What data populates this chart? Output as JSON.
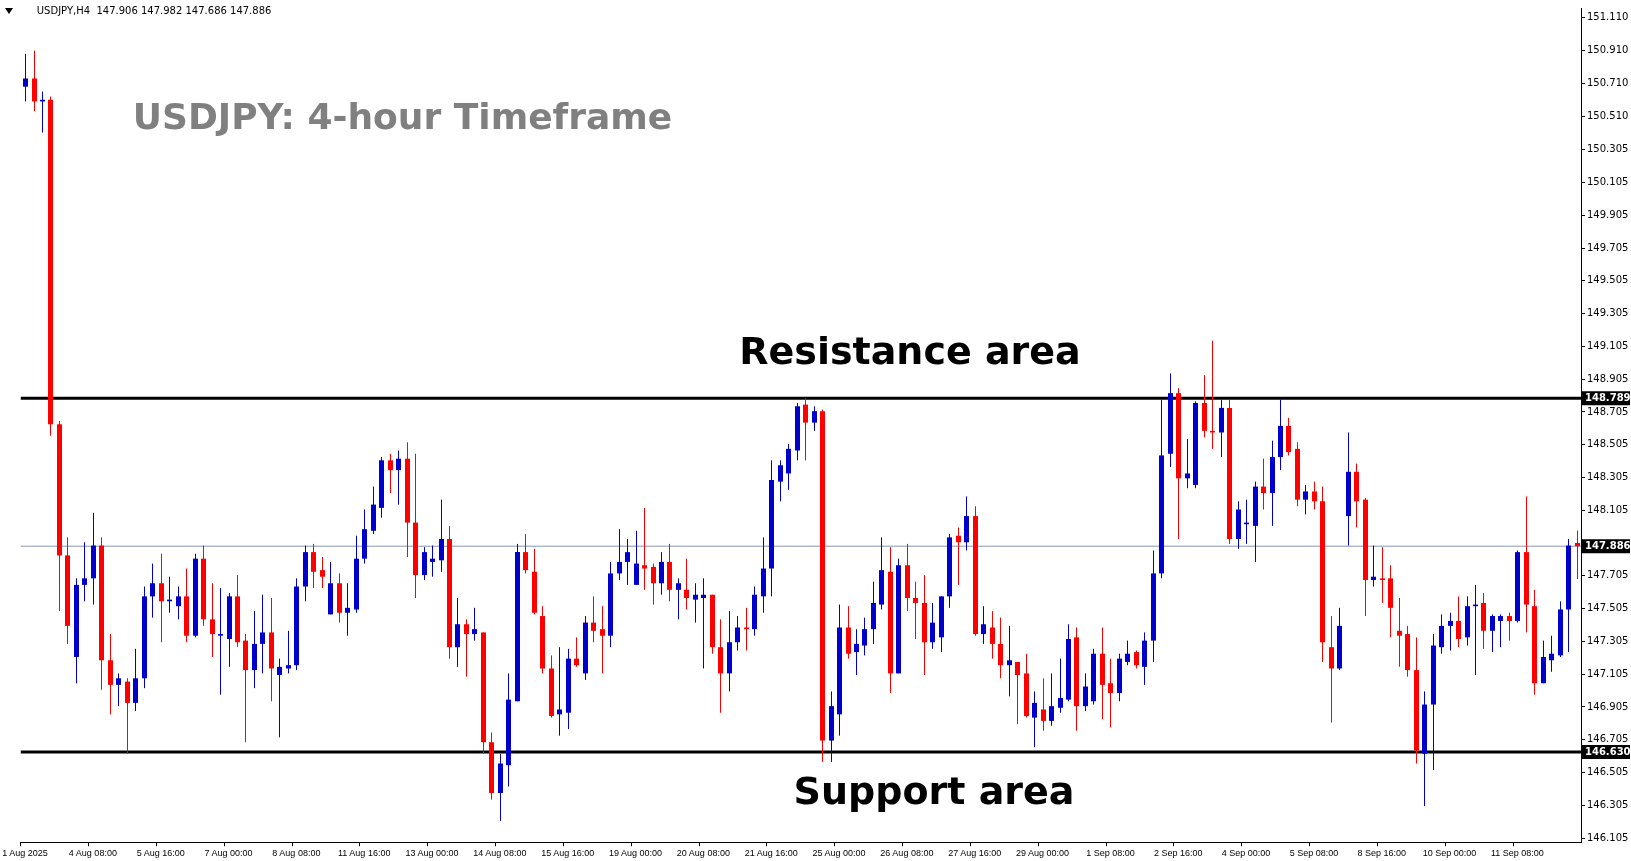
{
  "chart_data": {
    "type": "candlestick",
    "title": "USDJPY: 4-hour Timeframe",
    "subtitle": "USDJPY,H4  147.906 147.982 147.686 147.886",
    "categories": [
      "1 Aug 2025",
      null,
      null,
      null,
      null,
      null,
      null,
      null,
      "4 Aug 08:00",
      null,
      null,
      null,
      null,
      null,
      null,
      null,
      "5 Aug 16:00",
      null,
      null,
      null,
      null,
      null,
      null,
      null,
      "7 Aug 00:00",
      null,
      null,
      null,
      null,
      null,
      null,
      null,
      "8 Aug 08:00",
      null,
      null,
      null,
      null,
      null,
      null,
      null,
      "11 Aug 16:00",
      null,
      null,
      null,
      null,
      null,
      null,
      null,
      "13 Aug 00:00",
      null,
      null,
      null,
      null,
      null,
      null,
      null,
      "14 Aug 08:00",
      null,
      null,
      null,
      null,
      null,
      null,
      null,
      "15 Aug 16:00",
      null,
      null,
      null,
      null,
      null,
      null,
      null,
      "19 Aug 00:00",
      null,
      null,
      null,
      null,
      null,
      null,
      null,
      "20 Aug 08:00",
      null,
      null,
      null,
      null,
      null,
      null,
      null,
      "21 Aug 16:00",
      null,
      null,
      null,
      null,
      null,
      null,
      null,
      "25 Aug 00:00",
      null,
      null,
      null,
      null,
      null,
      null,
      null,
      "26 Aug 08:00",
      null,
      null,
      null,
      null,
      null,
      null,
      null,
      "27 Aug 16:00",
      null,
      null,
      null,
      null,
      null,
      null,
      null,
      "29 Aug 00:00",
      null,
      null,
      null,
      null,
      null,
      null,
      null,
      "1 Sep 08:00",
      null,
      null,
      null,
      null,
      null,
      null,
      null,
      "2 Sep 16:00",
      null,
      null,
      null,
      null,
      null,
      null,
      null,
      "4 Sep 00:00",
      null,
      null,
      null,
      null,
      null,
      null,
      null,
      "5 Sep 08:00",
      null,
      null,
      null,
      null,
      null,
      null,
      null,
      "8 Sep 16:00",
      null,
      null,
      null,
      null,
      null,
      null,
      null,
      "10 Sep 00:00",
      null,
      null,
      null,
      null,
      null,
      null,
      null,
      "11 Sep 08:00",
      null,
      null,
      null,
      null,
      null,
      null,
      null
    ],
    "ohlc": [
      [
        150.69,
        150.89,
        150.6,
        150.74
      ],
      [
        150.74,
        150.91,
        150.54,
        150.6
      ],
      [
        150.6,
        150.66,
        150.41,
        150.61
      ],
      [
        150.61,
        150.63,
        148.56,
        148.63
      ],
      [
        148.63,
        148.65,
        147.49,
        147.83
      ],
      [
        147.83,
        147.94,
        147.29,
        147.4
      ],
      [
        147.21,
        147.69,
        147.05,
        147.65
      ],
      [
        147.65,
        147.91,
        147.55,
        147.69
      ],
      [
        147.69,
        148.09,
        147.53,
        147.89
      ],
      [
        147.89,
        147.94,
        147.01,
        147.19
      ],
      [
        147.19,
        147.35,
        146.86,
        147.04
      ],
      [
        147.04,
        147.11,
        146.91,
        147.08
      ],
      [
        147.06,
        147.08,
        146.62,
        146.93
      ],
      [
        146.93,
        147.26,
        146.88,
        147.08
      ],
      [
        147.08,
        147.64,
        147.02,
        147.58
      ],
      [
        147.58,
        147.78,
        147.45,
        147.66
      ],
      [
        147.66,
        147.84,
        147.3,
        147.55
      ],
      [
        147.55,
        147.7,
        147.48,
        147.56
      ],
      [
        147.52,
        147.64,
        147.44,
        147.58
      ],
      [
        147.58,
        147.75,
        147.3,
        147.34
      ],
      [
        147.34,
        147.84,
        147.33,
        147.81
      ],
      [
        147.81,
        147.89,
        147.4,
        147.44
      ],
      [
        147.44,
        147.66,
        147.21,
        147.35
      ],
      [
        147.34,
        147.63,
        146.98,
        147.35
      ],
      [
        147.32,
        147.6,
        147.15,
        147.58
      ],
      [
        147.58,
        147.71,
        147.27,
        147.3
      ],
      [
        147.31,
        147.35,
        146.69,
        147.13
      ],
      [
        147.13,
        147.49,
        147.02,
        147.29
      ],
      [
        147.29,
        147.59,
        147.11,
        147.36
      ],
      [
        147.36,
        147.57,
        146.94,
        147.14
      ],
      [
        147.1,
        147.2,
        146.72,
        147.15
      ],
      [
        147.14,
        147.37,
        147.11,
        147.16
      ],
      [
        147.16,
        147.69,
        147.13,
        147.64
      ],
      [
        147.64,
        147.89,
        147.55,
        147.85
      ],
      [
        147.85,
        147.9,
        147.63,
        147.73
      ],
      [
        147.74,
        147.82,
        147.63,
        147.7
      ],
      [
        147.47,
        147.79,
        147.47,
        147.66
      ],
      [
        147.66,
        147.72,
        147.42,
        147.48
      ],
      [
        147.48,
        147.66,
        147.34,
        147.51
      ],
      [
        147.5,
        147.95,
        147.48,
        147.81
      ],
      [
        147.81,
        148.11,
        147.78,
        147.99
      ],
      [
        147.98,
        148.25,
        147.96,
        148.14
      ],
      [
        148.12,
        148.43,
        148.06,
        148.41
      ],
      [
        148.41,
        148.45,
        148.21,
        148.35
      ],
      [
        148.35,
        148.47,
        148.14,
        148.42
      ],
      [
        148.42,
        148.52,
        147.82,
        148.03
      ],
      [
        148.03,
        148.45,
        147.57,
        147.71
      ],
      [
        147.71,
        147.88,
        147.68,
        147.85
      ],
      [
        147.79,
        147.89,
        147.7,
        147.81
      ],
      [
        147.8,
        148.17,
        147.73,
        147.93
      ],
      [
        147.93,
        148.01,
        147.2,
        147.27
      ],
      [
        147.27,
        147.57,
        147.15,
        147.41
      ],
      [
        147.41,
        147.44,
        147.09,
        147.35
      ],
      [
        147.35,
        147.51,
        147.31,
        147.38
      ],
      [
        147.36,
        147.36,
        146.62,
        146.69
      ],
      [
        146.69,
        146.75,
        146.34,
        146.38
      ],
      [
        146.38,
        146.62,
        146.21,
        146.56
      ],
      [
        146.55,
        147.11,
        146.42,
        146.95
      ],
      [
        146.94,
        147.9,
        146.94,
        147.85
      ],
      [
        147.85,
        147.96,
        147.72,
        147.74
      ],
      [
        147.73,
        147.87,
        147.47,
        147.48
      ],
      [
        147.46,
        147.52,
        147.11,
        147.14
      ],
      [
        147.14,
        147.22,
        146.84,
        146.85
      ],
      [
        146.86,
        147.27,
        146.73,
        146.89
      ],
      [
        146.87,
        147.26,
        146.77,
        147.2
      ],
      [
        147.2,
        147.33,
        147.15,
        147.16
      ],
      [
        147.11,
        147.46,
        147.07,
        147.42
      ],
      [
        147.42,
        147.58,
        147.3,
        147.37
      ],
      [
        147.38,
        147.52,
        147.11,
        147.34
      ],
      [
        147.34,
        147.79,
        147.27,
        147.72
      ],
      [
        147.72,
        147.99,
        147.68,
        147.79
      ],
      [
        147.79,
        147.93,
        147.65,
        147.85
      ],
      [
        147.65,
        147.98,
        147.65,
        147.78
      ],
      [
        147.77,
        148.12,
        147.62,
        147.75
      ],
      [
        147.76,
        147.78,
        147.53,
        147.66
      ],
      [
        147.66,
        147.85,
        147.59,
        147.79
      ],
      [
        147.79,
        147.9,
        147.55,
        147.62
      ],
      [
        147.62,
        147.69,
        147.44,
        147.66
      ],
      [
        147.62,
        147.81,
        147.5,
        147.57
      ],
      [
        147.56,
        147.66,
        147.42,
        147.59
      ],
      [
        147.57,
        147.69,
        147.14,
        147.59
      ],
      [
        147.59,
        147.59,
        147.23,
        147.27
      ],
      [
        147.27,
        147.44,
        146.87,
        147.11
      ],
      [
        147.11,
        147.49,
        147.0,
        147.3
      ],
      [
        147.3,
        147.46,
        147.25,
        147.39
      ],
      [
        147.39,
        147.51,
        147.25,
        147.38
      ],
      [
        147.38,
        147.64,
        147.34,
        147.59
      ],
      [
        147.58,
        147.94,
        147.48,
        147.75
      ],
      [
        147.75,
        148.41,
        147.58,
        148.29
      ],
      [
        148.28,
        148.41,
        148.16,
        148.38
      ],
      [
        148.33,
        148.51,
        148.23,
        148.48
      ],
      [
        148.47,
        148.76,
        148.41,
        148.74
      ],
      [
        148.75,
        148.79,
        148.41,
        148.64
      ],
      [
        148.64,
        148.74,
        148.59,
        148.71
      ],
      [
        148.71,
        148.72,
        146.57,
        146.7
      ],
      [
        146.7,
        147.0,
        146.57,
        146.91
      ],
      [
        146.86,
        147.53,
        146.73,
        147.39
      ],
      [
        147.39,
        147.52,
        147.2,
        147.23
      ],
      [
        147.24,
        147.38,
        147.1,
        147.29
      ],
      [
        147.28,
        147.45,
        147.22,
        147.38
      ],
      [
        147.38,
        147.67,
        147.29,
        147.54
      ],
      [
        147.53,
        147.94,
        147.5,
        147.74
      ],
      [
        147.73,
        147.88,
        146.99,
        147.11
      ],
      [
        147.11,
        147.81,
        147.11,
        147.77
      ],
      [
        147.77,
        147.9,
        147.49,
        147.57
      ],
      [
        147.57,
        147.67,
        147.32,
        147.54
      ],
      [
        147.54,
        147.71,
        147.1,
        147.3
      ],
      [
        147.3,
        147.54,
        147.26,
        147.42
      ],
      [
        147.33,
        147.58,
        147.24,
        147.58
      ],
      [
        147.58,
        147.96,
        147.51,
        147.94
      ],
      [
        147.95,
        148.0,
        147.65,
        147.91
      ],
      [
        147.91,
        148.19,
        147.86,
        148.07
      ],
      [
        148.07,
        148.13,
        147.34,
        147.35
      ],
      [
        147.35,
        147.52,
        147.29,
        147.41
      ],
      [
        147.39,
        147.49,
        147.2,
        147.29
      ],
      [
        147.29,
        147.45,
        147.08,
        147.16
      ],
      [
        147.16,
        147.4,
        146.97,
        147.19
      ],
      [
        147.18,
        147.18,
        146.8,
        147.1
      ],
      [
        147.11,
        147.23,
        146.84,
        146.85
      ],
      [
        146.84,
        147.0,
        146.66,
        146.93
      ],
      [
        146.89,
        147.08,
        146.76,
        146.82
      ],
      [
        146.82,
        147.11,
        146.79,
        146.91
      ],
      [
        146.9,
        147.2,
        146.87,
        146.96
      ],
      [
        146.95,
        147.41,
        146.94,
        147.32
      ],
      [
        147.33,
        147.39,
        146.76,
        146.91
      ],
      [
        146.91,
        147.11,
        146.88,
        147.03
      ],
      [
        146.94,
        147.26,
        146.92,
        147.23
      ],
      [
        147.23,
        147.39,
        146.83,
        147.04
      ],
      [
        147.05,
        147.2,
        146.78,
        146.99
      ],
      [
        146.99,
        147.23,
        146.94,
        147.2
      ],
      [
        147.18,
        147.31,
        147.16,
        147.23
      ],
      [
        147.24,
        147.25,
        147.14,
        147.16
      ],
      [
        147.15,
        147.36,
        147.04,
        147.31
      ],
      [
        147.31,
        147.86,
        147.18,
        147.72
      ],
      [
        147.72,
        148.78,
        147.69,
        148.44
      ],
      [
        148.45,
        148.94,
        148.37,
        148.82
      ],
      [
        148.82,
        148.85,
        147.93,
        148.3
      ],
      [
        148.3,
        148.54,
        148.24,
        148.33
      ],
      [
        148.26,
        148.77,
        148.24,
        148.76
      ],
      [
        148.76,
        148.93,
        148.55,
        148.59
      ],
      [
        148.59,
        149.14,
        148.48,
        148.58
      ],
      [
        148.58,
        148.78,
        148.43,
        148.73
      ],
      [
        148.73,
        148.78,
        147.9,
        147.93
      ],
      [
        147.93,
        148.16,
        147.87,
        148.11
      ],
      [
        148.02,
        148.17,
        147.9,
        148.03
      ],
      [
        148.01,
        148.28,
        147.79,
        148.25
      ],
      [
        148.25,
        148.42,
        148.11,
        148.21
      ],
      [
        148.21,
        148.53,
        148.01,
        148.43
      ],
      [
        148.43,
        148.78,
        148.35,
        148.62
      ],
      [
        148.62,
        148.67,
        148.44,
        148.46
      ],
      [
        148.48,
        148.52,
        148.13,
        148.17
      ],
      [
        148.17,
        148.26,
        148.08,
        148.22
      ],
      [
        148.22,
        148.28,
        148.11,
        148.16
      ],
      [
        148.16,
        148.25,
        147.18,
        147.3
      ],
      [
        147.27,
        147.46,
        146.81,
        147.14
      ],
      [
        147.14,
        147.51,
        147.13,
        147.4
      ],
      [
        148.07,
        148.58,
        147.89,
        148.34
      ],
      [
        148.34,
        148.39,
        148.0,
        148.16
      ],
      [
        148.17,
        148.18,
        147.46,
        147.68
      ],
      [
        147.68,
        147.89,
        147.64,
        147.7
      ],
      [
        147.69,
        147.88,
        147.54,
        147.68
      ],
      [
        147.69,
        147.77,
        147.33,
        147.51
      ],
      [
        147.37,
        147.57,
        147.15,
        147.34
      ],
      [
        147.35,
        147.4,
        147.09,
        147.13
      ],
      [
        147.13,
        147.33,
        146.56,
        146.64
      ],
      [
        146.62,
        147.0,
        146.3,
        146.92
      ],
      [
        146.92,
        147.35,
        146.52,
        147.28
      ],
      [
        147.27,
        147.47,
        147.23,
        147.4
      ],
      [
        147.4,
        147.48,
        147.25,
        147.43
      ],
      [
        147.43,
        147.58,
        147.27,
        147.32
      ],
      [
        147.33,
        147.58,
        147.28,
        147.52
      ],
      [
        147.52,
        147.65,
        147.1,
        147.53
      ],
      [
        147.54,
        147.6,
        147.26,
        147.37
      ],
      [
        147.37,
        147.47,
        147.24,
        147.46
      ],
      [
        147.43,
        147.47,
        147.27,
        147.46
      ],
      [
        147.46,
        147.48,
        147.31,
        147.43
      ],
      [
        147.43,
        147.86,
        147.42,
        147.85
      ],
      [
        147.85,
        148.19,
        147.36,
        147.53
      ],
      [
        147.52,
        147.62,
        146.98,
        147.05
      ],
      [
        147.05,
        147.31,
        147.05,
        147.21
      ],
      [
        147.19,
        147.34,
        147.12,
        147.23
      ],
      [
        147.22,
        147.55,
        147.21,
        147.5
      ],
      [
        147.5,
        147.93,
        147.24,
        147.89
      ],
      [
        147.906,
        147.982,
        147.686,
        147.886
      ]
    ],
    "colors": [
      "#0000cc",
      "#ff0000",
      "#0000cc",
      "#ff0000",
      "#ff0000",
      "#ff0000",
      "#0000cc",
      "#0000cc",
      "#0000cc",
      "#ff0000",
      "#ff0000",
      "#0000cc",
      "#ff0000",
      "#0000cc",
      "#0000cc",
      "#0000cc",
      "#ff0000",
      "#0000cc",
      "#0000cc",
      "#ff0000",
      "#0000cc",
      "#ff0000",
      "#ff0000",
      "#0000cc",
      "#0000cc",
      "#ff0000",
      "#ff0000",
      "#0000cc",
      "#0000cc",
      "#ff0000",
      "#0000cc",
      "#0000cc",
      "#0000cc",
      "#0000cc",
      "#ff0000",
      "#ff0000",
      "#0000cc",
      "#ff0000",
      "#0000cc",
      "#0000cc",
      "#0000cc",
      "#0000cc",
      "#0000cc",
      "#ff0000",
      "#0000cc",
      "#ff0000",
      "#ff0000",
      "#0000cc",
      "#0000cc",
      "#0000cc",
      "#ff0000",
      "#0000cc",
      "#ff0000",
      "#0000cc",
      "#ff0000",
      "#ff0000",
      "#0000cc",
      "#0000cc",
      "#0000cc",
      "#ff0000",
      "#ff0000",
      "#ff0000",
      "#ff0000",
      "#0000cc",
      "#0000cc",
      "#ff0000",
      "#0000cc",
      "#ff0000",
      "#ff0000",
      "#0000cc",
      "#0000cc",
      "#0000cc",
      "#0000cc",
      "#ff0000",
      "#ff0000",
      "#0000cc",
      "#ff0000",
      "#0000cc",
      "#ff0000",
      "#0000cc",
      "#0000cc",
      "#ff0000",
      "#ff0000",
      "#0000cc",
      "#0000cc",
      "#ff0000",
      "#0000cc",
      "#0000cc",
      "#0000cc",
      "#0000cc",
      "#0000cc",
      "#0000cc",
      "#ff0000",
      "#0000cc",
      "#ff0000",
      "#0000cc",
      "#0000cc",
      "#ff0000",
      "#0000cc",
      "#0000cc",
      "#0000cc",
      "#0000cc",
      "#ff0000",
      "#0000cc",
      "#ff0000",
      "#ff0000",
      "#ff0000",
      "#0000cc",
      "#0000cc",
      "#0000cc",
      "#ff0000",
      "#0000cc",
      "#ff0000",
      "#0000cc",
      "#ff0000",
      "#ff0000",
      "#0000cc",
      "#ff0000",
      "#ff0000",
      "#0000cc",
      "#ff0000",
      "#0000cc",
      "#0000cc",
      "#0000cc",
      "#ff0000",
      "#0000cc",
      "#0000cc",
      "#ff0000",
      "#ff0000",
      "#0000cc",
      "#0000cc",
      "#ff0000",
      "#0000cc",
      "#0000cc",
      "#0000cc",
      "#0000cc",
      "#ff0000",
      "#0000cc",
      "#0000cc",
      "#ff0000",
      "#ff0000",
      "#0000cc",
      "#ff0000",
      "#0000cc",
      "#0000cc",
      "#0000cc",
      "#ff0000",
      "#0000cc",
      "#0000cc",
      "#ff0000",
      "#ff0000",
      "#0000cc",
      "#ff0000",
      "#ff0000",
      "#ff0000",
      "#0000cc",
      "#0000cc",
      "#ff0000",
      "#ff0000",
      "#0000cc",
      "#ff0000",
      "#ff0000",
      "#ff0000",
      "#ff0000",
      "#ff0000",
      "#0000cc",
      "#0000cc",
      "#0000cc",
      "#0000cc",
      "#ff0000",
      "#0000cc",
      "#0000cc",
      "#ff0000",
      "#0000cc",
      "#0000cc",
      "#ff0000",
      "#0000cc",
      "#ff0000",
      "#ff0000",
      "#0000cc",
      "#0000cc",
      "#0000cc",
      "#0000cc",
      "#ff0000"
    ],
    "ylim": [
      146.08,
      151.17
    ],
    "yticks": [
      {
        "value": 151.11,
        "label": "151.110"
      },
      {
        "value": 150.91,
        "label": "150.910"
      },
      {
        "value": 150.71,
        "label": "150.710"
      },
      {
        "value": 150.51,
        "label": "150.510"
      },
      150.305,
      150.105,
      149.905,
      149.705,
      149.505,
      149.305,
      149.105,
      148.905,
      148.705,
      148.505,
      148.305,
      148.105,
      147.705,
      147.505,
      147.305,
      147.105,
      146.905,
      146.705,
      146.505,
      146.305,
      146.105
    ],
    "ref_lines": [
      {
        "axis": "y",
        "value": 148.789,
        "label": "148.789",
        "color": "#000000"
      },
      {
        "axis": "y",
        "value": 146.63,
        "label": "146.630",
        "color": "#000000"
      },
      {
        "axis": "y",
        "value": 147.886,
        "label": "147.886",
        "color": "#8796b0"
      }
    ],
    "annotations": [
      "Resistance area",
      "Support area"
    ],
    "grid": false,
    "legend": false
  }
}
